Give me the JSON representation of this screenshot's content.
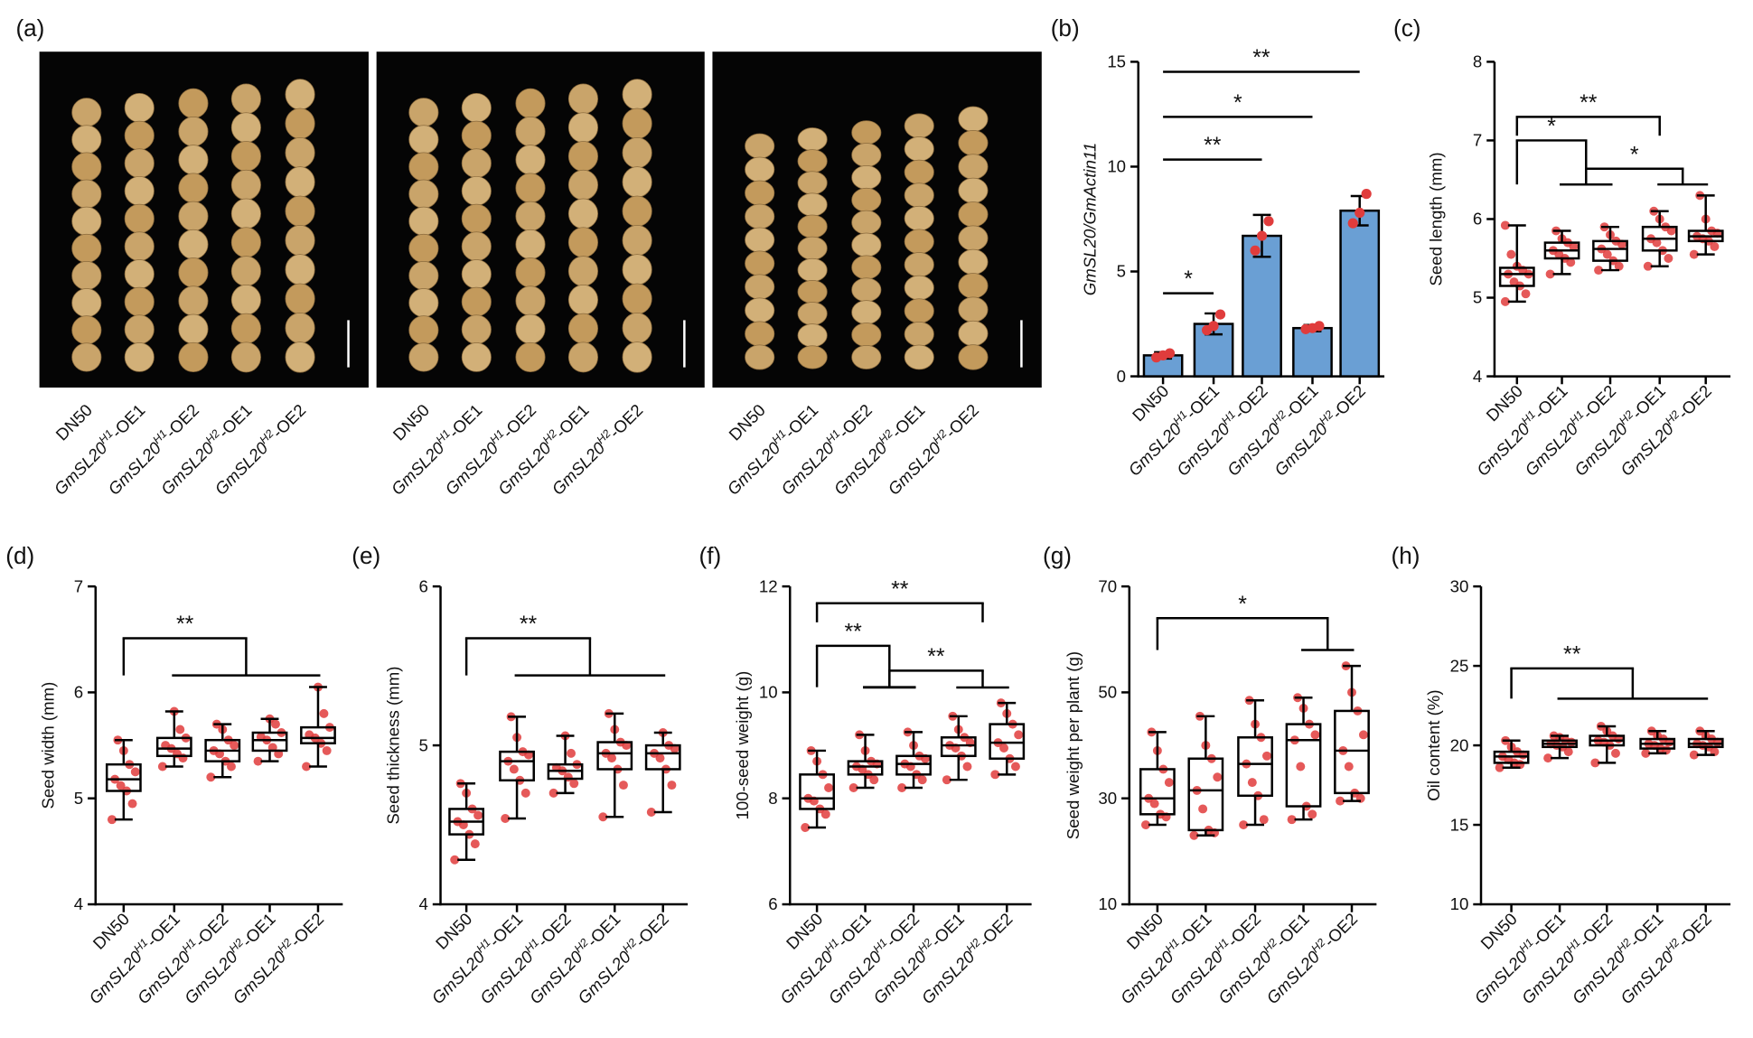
{
  "figure_a": {
    "panel_label": "(a)",
    "categories": [
      "DN50",
      "GmSL20H1-OE1",
      "GmSL20H1-OE2",
      "GmSL20H2-OE1",
      "GmSL20H2-OE2"
    ]
  },
  "chart_data": [
    {
      "type": "bar",
      "panel_label": "(b)",
      "ylabel": "GmSL20/GmActin11",
      "categories": [
        "DN50",
        "GmSL20H1-OE1",
        "GmSL20H1-OE2",
        "GmSL20H2-OE1",
        "GmSL20H2-OE2"
      ],
      "values": [
        1.0,
        2.5,
        6.7,
        2.3,
        7.9
      ],
      "errors": [
        0.15,
        0.5,
        1.0,
        0.15,
        0.7
      ],
      "points": [
        [
          0.9,
          1.0,
          1.1
        ],
        [
          2.2,
          2.4,
          2.95
        ],
        [
          6.0,
          6.7,
          7.4
        ],
        [
          2.25,
          2.3,
          2.4
        ],
        [
          7.3,
          7.8,
          8.7
        ]
      ],
      "color": "#6a9fd4",
      "point_color": "#e03c3c",
      "ylim": [
        0,
        15
      ],
      "yticks": [
        0,
        5,
        10,
        15
      ],
      "annotations": [
        "**",
        "*",
        "**",
        "*"
      ]
    },
    {
      "type": "box",
      "panel_label": "(c)",
      "ylabel": "Seed length (mm)",
      "categories": [
        "DN50",
        "GmSL20H1-OE1",
        "GmSL20H1-OE2",
        "GmSL20H2-OE1",
        "GmSL20H2-OE2"
      ],
      "boxes": [
        {
          "min": 4.95,
          "q1": 5.15,
          "median": 5.3,
          "q3": 5.38,
          "max": 5.92,
          "points": [
            4.95,
            5.05,
            5.15,
            5.2,
            5.3,
            5.3,
            5.35,
            5.4,
            5.55,
            5.92
          ]
        },
        {
          "min": 5.3,
          "q1": 5.5,
          "median": 5.6,
          "q3": 5.7,
          "max": 5.85,
          "points": [
            5.3,
            5.45,
            5.5,
            5.55,
            5.6,
            5.65,
            5.7,
            5.75,
            5.85
          ]
        },
        {
          "min": 5.35,
          "q1": 5.47,
          "median": 5.62,
          "q3": 5.72,
          "max": 5.9,
          "points": [
            5.35,
            5.4,
            5.47,
            5.55,
            5.62,
            5.68,
            5.72,
            5.8,
            5.9
          ]
        },
        {
          "min": 5.4,
          "q1": 5.6,
          "median": 5.75,
          "q3": 5.9,
          "max": 6.1,
          "points": [
            5.4,
            5.5,
            5.6,
            5.7,
            5.75,
            5.85,
            5.9,
            6.0,
            6.1
          ]
        },
        {
          "min": 5.55,
          "q1": 5.72,
          "median": 5.78,
          "q3": 5.85,
          "max": 6.3,
          "points": [
            5.55,
            5.65,
            5.72,
            5.75,
            5.78,
            5.82,
            5.85,
            6.0,
            6.3
          ]
        }
      ],
      "point_color": "#e03c3c",
      "ylim": [
        4,
        8
      ],
      "yticks": [
        4,
        5,
        6,
        7,
        8
      ],
      "annotations": [
        "**",
        "*",
        "*"
      ]
    },
    {
      "type": "box",
      "panel_label": "(d)",
      "ylabel": "Seed width (mm)",
      "categories": [
        "DN50",
        "GmSL20H1-OE1",
        "GmSL20H1-OE2",
        "GmSL20H2-OE1",
        "GmSL20H2-OE2"
      ],
      "boxes": [
        {
          "min": 4.8,
          "q1": 5.07,
          "median": 5.18,
          "q3": 5.32,
          "max": 5.55,
          "points": [
            4.8,
            4.95,
            5.07,
            5.12,
            5.18,
            5.25,
            5.32,
            5.45,
            5.55
          ]
        },
        {
          "min": 5.3,
          "q1": 5.4,
          "median": 5.47,
          "q3": 5.57,
          "max": 5.82,
          "points": [
            5.3,
            5.38,
            5.42,
            5.47,
            5.5,
            5.57,
            5.65,
            5.82
          ]
        },
        {
          "min": 5.2,
          "q1": 5.35,
          "median": 5.45,
          "q3": 5.55,
          "max": 5.7,
          "points": [
            5.2,
            5.3,
            5.35,
            5.42,
            5.45,
            5.5,
            5.55,
            5.65,
            5.7
          ]
        },
        {
          "min": 5.35,
          "q1": 5.45,
          "median": 5.55,
          "q3": 5.62,
          "max": 5.75,
          "points": [
            5.35,
            5.42,
            5.48,
            5.55,
            5.58,
            5.62,
            5.7,
            5.75
          ]
        },
        {
          "min": 5.3,
          "q1": 5.52,
          "median": 5.57,
          "q3": 5.67,
          "max": 6.05,
          "points": [
            5.3,
            5.45,
            5.52,
            5.57,
            5.6,
            5.67,
            5.8,
            6.05
          ]
        }
      ],
      "point_color": "#e03c3c",
      "ylim": [
        4,
        7
      ],
      "yticks": [
        4,
        5,
        6,
        7
      ],
      "annotations": [
        "**"
      ]
    },
    {
      "type": "box",
      "panel_label": "(e)",
      "ylabel": "Seed thickness (mm)",
      "categories": [
        "DN50",
        "GmSL20H1-OE1",
        "GmSL20H1-OE2",
        "GmSL20H2-OE1",
        "GmSL20H2-OE2"
      ],
      "boxes": [
        {
          "min": 4.28,
          "q1": 4.44,
          "median": 4.52,
          "q3": 4.6,
          "max": 4.76,
          "points": [
            4.28,
            4.38,
            4.44,
            4.5,
            4.52,
            4.56,
            4.6,
            4.7,
            4.76
          ]
        },
        {
          "min": 4.54,
          "q1": 4.78,
          "median": 4.9,
          "q3": 4.96,
          "max": 5.18,
          "points": [
            4.54,
            4.7,
            4.78,
            4.85,
            4.9,
            4.94,
            4.96,
            5.05,
            5.18
          ]
        },
        {
          "min": 4.7,
          "q1": 4.79,
          "median": 4.84,
          "q3": 4.88,
          "max": 5.06,
          "points": [
            4.7,
            4.76,
            4.8,
            4.84,
            4.86,
            4.88,
            4.95,
            5.06
          ]
        },
        {
          "min": 4.55,
          "q1": 4.85,
          "median": 4.95,
          "q3": 5.02,
          "max": 5.2,
          "points": [
            4.55,
            4.75,
            4.85,
            4.92,
            4.95,
            5.0,
            5.02,
            5.1,
            5.2
          ]
        },
        {
          "min": 4.58,
          "q1": 4.85,
          "median": 4.95,
          "q3": 5.0,
          "max": 5.08,
          "points": [
            4.58,
            4.75,
            4.85,
            4.92,
            4.95,
            4.98,
            5.0,
            5.08
          ]
        }
      ],
      "point_color": "#e03c3c",
      "ylim": [
        4,
        6
      ],
      "yticks": [
        4,
        5,
        6
      ],
      "annotations": [
        "**"
      ]
    },
    {
      "type": "box",
      "panel_label": "(f)",
      "ylabel": "100-seed  weight (g)",
      "categories": [
        "DN50",
        "GmSL20H1-OE1",
        "GmSL20H1-OE2",
        "GmSL20H2-OE1",
        "GmSL20H2-OE2"
      ],
      "boxes": [
        {
          "min": 7.45,
          "q1": 7.8,
          "median": 8.0,
          "q3": 8.45,
          "max": 8.9,
          "points": [
            7.45,
            7.7,
            7.8,
            7.95,
            8.0,
            8.2,
            8.45,
            8.7,
            8.9
          ]
        },
        {
          "min": 8.2,
          "q1": 8.45,
          "median": 8.6,
          "q3": 8.7,
          "max": 9.2,
          "points": [
            8.2,
            8.35,
            8.45,
            8.55,
            8.6,
            8.65,
            8.7,
            8.9,
            9.2
          ]
        },
        {
          "min": 8.2,
          "q1": 8.45,
          "median": 8.65,
          "q3": 8.8,
          "max": 9.25,
          "points": [
            8.2,
            8.35,
            8.45,
            8.6,
            8.65,
            8.75,
            8.8,
            9.0,
            9.25
          ]
        },
        {
          "min": 8.35,
          "q1": 8.8,
          "median": 9.0,
          "q3": 9.15,
          "max": 9.55,
          "points": [
            8.35,
            8.6,
            8.8,
            8.95,
            9.0,
            9.05,
            9.15,
            9.3,
            9.55
          ]
        },
        {
          "min": 8.45,
          "q1": 8.75,
          "median": 9.05,
          "q3": 9.4,
          "max": 9.8,
          "points": [
            8.45,
            8.6,
            8.75,
            8.95,
            9.05,
            9.2,
            9.4,
            9.6,
            9.8
          ]
        }
      ],
      "point_color": "#e03c3c",
      "ylim": [
        6,
        12
      ],
      "yticks": [
        6,
        8,
        10,
        12
      ],
      "annotations": [
        "**",
        "**",
        "**"
      ]
    },
    {
      "type": "box",
      "panel_label": "(g)",
      "ylabel": "Seed weight per  plant (g)",
      "categories": [
        "DN50",
        "GmSL20H1-OE1",
        "GmSL20H1-OE2",
        "GmSL20H2-OE1",
        "GmSL20H2-OE2"
      ],
      "boxes": [
        {
          "min": 25,
          "q1": 27,
          "median": 30,
          "q3": 35.5,
          "max": 42.5,
          "points": [
            25,
            26.5,
            27,
            29,
            30,
            33,
            35.5,
            39,
            42.5
          ]
        },
        {
          "min": 23,
          "q1": 24,
          "median": 31.5,
          "q3": 37.5,
          "max": 45.5,
          "points": [
            23,
            23.5,
            24,
            28,
            31.5,
            34,
            37.5,
            40,
            45.5
          ]
        },
        {
          "min": 25,
          "q1": 30.5,
          "median": 36.5,
          "q3": 41.5,
          "max": 48.5,
          "points": [
            25,
            26,
            30.5,
            33,
            36.5,
            38,
            41.5,
            44,
            48.5
          ]
        },
        {
          "min": 26,
          "q1": 28.5,
          "median": 41,
          "q3": 44,
          "max": 49,
          "points": [
            26,
            27,
            28.5,
            36,
            41,
            42,
            44,
            47,
            49
          ]
        },
        {
          "min": 29.5,
          "q1": 31,
          "median": 39,
          "q3": 46.5,
          "max": 55,
          "points": [
            29.5,
            30,
            31,
            36,
            39,
            42,
            46.5,
            50,
            55
          ]
        }
      ],
      "point_color": "#e03c3c",
      "ylim": [
        10,
        70
      ],
      "yticks": [
        10,
        30,
        50,
        70
      ],
      "annotations": [
        "*"
      ]
    },
    {
      "type": "box",
      "panel_label": "(h)",
      "ylabel": "Oil content (%)",
      "categories": [
        "DN50",
        "GmSL20H1-OE1",
        "GmSL20H1-OE2",
        "GmSL20H2-OE1",
        "GmSL20H2-OE2"
      ],
      "boxes": [
        {
          "min": 18.6,
          "q1": 18.9,
          "median": 19.3,
          "q3": 19.6,
          "max": 20.3,
          "points": [
            18.6,
            18.8,
            18.9,
            19.1,
            19.3,
            19.4,
            19.6,
            19.9,
            20.3
          ]
        },
        {
          "min": 19.2,
          "q1": 19.9,
          "median": 20.1,
          "q3": 20.3,
          "max": 20.6,
          "points": [
            19.2,
            19.6,
            19.9,
            20.0,
            20.1,
            20.2,
            20.3,
            20.5,
            20.6
          ]
        },
        {
          "min": 18.9,
          "q1": 20.0,
          "median": 20.3,
          "q3": 20.6,
          "max": 21.2,
          "points": [
            18.9,
            19.5,
            20.0,
            20.2,
            20.3,
            20.4,
            20.6,
            20.9,
            21.2
          ]
        },
        {
          "min": 19.5,
          "q1": 19.8,
          "median": 20.1,
          "q3": 20.4,
          "max": 20.9,
          "points": [
            19.5,
            19.7,
            19.8,
            20.0,
            20.1,
            20.2,
            20.4,
            20.6,
            20.9
          ]
        },
        {
          "min": 19.4,
          "q1": 19.9,
          "median": 20.1,
          "q3": 20.4,
          "max": 20.9,
          "points": [
            19.4,
            19.6,
            19.9,
            20.0,
            20.1,
            20.2,
            20.4,
            20.6,
            20.9
          ]
        }
      ],
      "point_color": "#e03c3c",
      "ylim": [
        10,
        30
      ],
      "yticks": [
        10,
        15,
        20,
        25,
        30
      ],
      "annotations": [
        "**"
      ]
    }
  ]
}
